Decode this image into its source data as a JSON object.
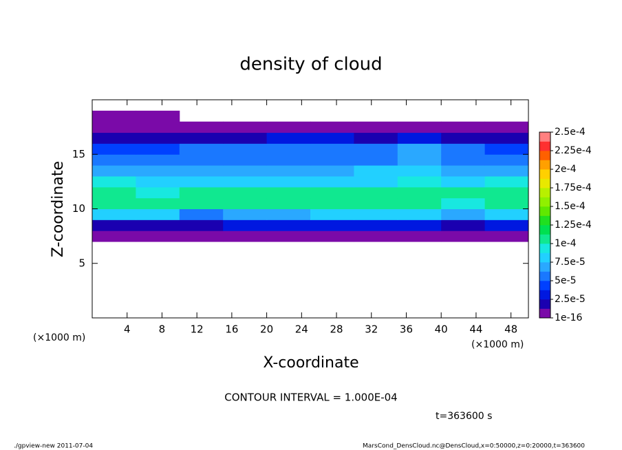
{
  "chart_data": {
    "type": "heatmap",
    "title": "density of cloud",
    "xlabel": "X-coordinate",
    "ylabel": "Z-coordinate",
    "x_unit_labels": [
      "(×1000 m)",
      "(×1000 m)"
    ],
    "annotation": "CONTOUR INTERVAL = 1.000E-04",
    "time_label": "t=363600 s",
    "footer_left": "./gpview-new  2011-07-04",
    "footer_right": "MarsCond_DensCloud.nc@DensCloud,x=0:50000,z=0:20000,t=363600",
    "xlim": [
      0,
      50
    ],
    "ylim": [
      0,
      20
    ],
    "xticks": [
      4,
      8,
      12,
      16,
      20,
      24,
      28,
      32,
      36,
      40,
      44,
      48
    ],
    "yticks": [
      5,
      10,
      15
    ],
    "x": [
      2.5,
      7.5,
      12.5,
      17.5,
      22.5,
      27.5,
      32.5,
      37.5,
      42.5,
      47.5
    ],
    "y": [
      7.5,
      8.5,
      9.5,
      10.5,
      11.5,
      12.5,
      13.5,
      14.5,
      15.5,
      16.5,
      17.5,
      18.5
    ],
    "values": [
      [
        5e-06,
        5e-06,
        8e-06,
        8e-06,
        5e-06,
        8e-06,
        8e-06,
        8e-06,
        5e-06,
        8e-06
      ],
      [
        2e-05,
        2.2e-05,
        2e-05,
        2.5e-05,
        2.5e-05,
        2.5e-05,
        2.5e-05,
        2.5e-05,
        2e-05,
        2.5e-05
      ],
      [
        8e-05,
        7.5e-05,
        6e-05,
        7e-05,
        7e-05,
        7.5e-05,
        7.5e-05,
        7.5e-05,
        6.5e-05,
        7.5e-05
      ],
      [
        0.000105,
        0.0001,
        0.0001,
        0.000105,
        0.000105,
        0.000105,
        0.000105,
        0.000102,
        9.5e-05,
        0.0001
      ],
      [
        0.000105,
        9.5e-05,
        0.0001,
        0.000105,
        0.0001,
        0.000105,
        0.000105,
        0.000105,
        0.0001,
        0.000105
      ],
      [
        9e-05,
        8e-05,
        8e-05,
        8e-05,
        8e-05,
        8.5e-05,
        8.5e-05,
        9e-05,
        8.5e-05,
        9e-05
      ],
      [
        7e-05,
        6.5e-05,
        7e-05,
        7e-05,
        7e-05,
        7e-05,
        7.5e-05,
        8e-05,
        7e-05,
        7e-05
      ],
      [
        6e-05,
        5.5e-05,
        6e-05,
        6e-05,
        6e-05,
        6e-05,
        6e-05,
        7e-05,
        6e-05,
        6e-05
      ],
      [
        4.5e-05,
        4e-05,
        5e-05,
        5e-05,
        5e-05,
        5e-05,
        5e-05,
        6.5e-05,
        5e-05,
        4.5e-05
      ],
      [
        1.5e-05,
        1.5e-05,
        2e-05,
        2e-05,
        2.5e-05,
        2.5e-05,
        2e-05,
        3e-05,
        2e-05,
        2e-05
      ],
      [
        5e-06,
        5e-06,
        5e-06,
        5e-06,
        5e-06,
        5e-06,
        5e-06,
        5e-06,
        5e-06,
        5e-06
      ],
      [
        5e-06,
        5e-06,
        null,
        null,
        null,
        null,
        null,
        null,
        null,
        null
      ]
    ],
    "colorbar_ticks": [
      {
        "value": 1e-16,
        "label": "1e-16"
      },
      {
        "value": 2.5e-05,
        "label": "2.5e-5"
      },
      {
        "value": 5e-05,
        "label": "5e-5"
      },
      {
        "value": 7.5e-05,
        "label": "7.5e-5"
      },
      {
        "value": 0.0001,
        "label": "1e-4"
      },
      {
        "value": 0.000125,
        "label": "1.25e-4"
      },
      {
        "value": 0.00015,
        "label": "1.5e-4"
      },
      {
        "value": 0.000175,
        "label": "1.75e-4"
      },
      {
        "value": 0.0002,
        "label": "2e-4"
      },
      {
        "value": 0.000225,
        "label": "2.25e-4"
      },
      {
        "value": 0.00025,
        "label": "2.5e-4"
      }
    ],
    "colors": [
      "#7a0aa8",
      "#1a00b0",
      "#0018e0",
      "#0040ff",
      "#1a78ff",
      "#2aa8ff",
      "#22d0ff",
      "#18e8e0",
      "#10e890",
      "#00e050",
      "#20e020",
      "#60e800",
      "#90f000",
      "#b8f000",
      "#e8e800",
      "#ffd000",
      "#ffa000",
      "#ff6000",
      "#ff3030",
      "#ff8080"
    ]
  }
}
